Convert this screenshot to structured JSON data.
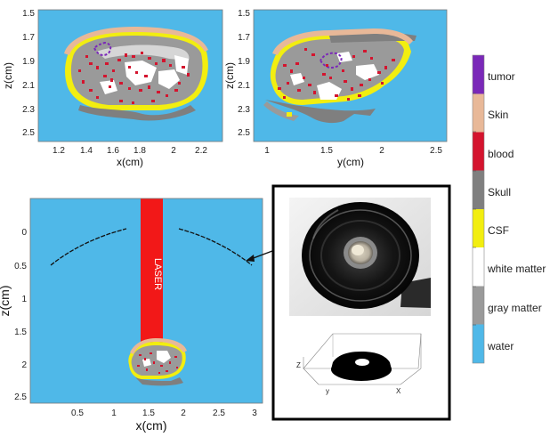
{
  "colors": {
    "water": "#4FB8E8",
    "gray_matter": "#9A9A9A",
    "white_matter": "#FFFFFF",
    "csf": "#F2EE10",
    "skull": "#7F7F7F",
    "blood": "#D4142E",
    "skin": "#E8B898",
    "tumor": "#7A28B8",
    "laser": "#F21818"
  },
  "panel_coronal": {
    "xlabel": "x(cm)",
    "ylabel": "z(cm)",
    "x_ticks": [
      "1.2",
      "1.4",
      "1.6",
      "1.8",
      "2",
      "2.2"
    ],
    "y_ticks": [
      "1.5",
      "1.7",
      "1.9",
      "2.1",
      "2.3",
      "2.5"
    ]
  },
  "panel_sagittal": {
    "xlabel": "y(cm)",
    "ylabel": "z(cm)",
    "x_ticks": [
      "1",
      "1.5",
      "2",
      "2.5"
    ],
    "y_ticks": [
      "1.5",
      "1.7",
      "1.9",
      "2.1",
      "2.3",
      "2.5"
    ]
  },
  "panel_setup": {
    "xlabel": "x(cm)",
    "ylabel": "z(cm)",
    "x_ticks": [
      "0.5",
      "1",
      "1.5",
      "2",
      "2.5",
      "3"
    ],
    "y_ticks": [
      "0",
      "0.5",
      "1",
      "1.5",
      "2",
      "2.5"
    ],
    "laser_label": "LASER"
  },
  "inset": {
    "axis_z": "Z",
    "axis_y": "y",
    "axis_x": "X"
  },
  "legend": {
    "items": [
      {
        "label": "tumor",
        "color": "#7A28B8"
      },
      {
        "label": "Skin",
        "color": "#E8B898"
      },
      {
        "label": "blood",
        "color": "#D4142E"
      },
      {
        "label": "Skull",
        "color": "#7F7F7F"
      },
      {
        "label": "CSF",
        "color": "#F2EE10"
      },
      {
        "label": "white matter",
        "color": "#FFFFFF"
      },
      {
        "label": "gray matter",
        "color": "#9A9A9A"
      },
      {
        "label": "water",
        "color": "#4FB8E8"
      }
    ]
  }
}
